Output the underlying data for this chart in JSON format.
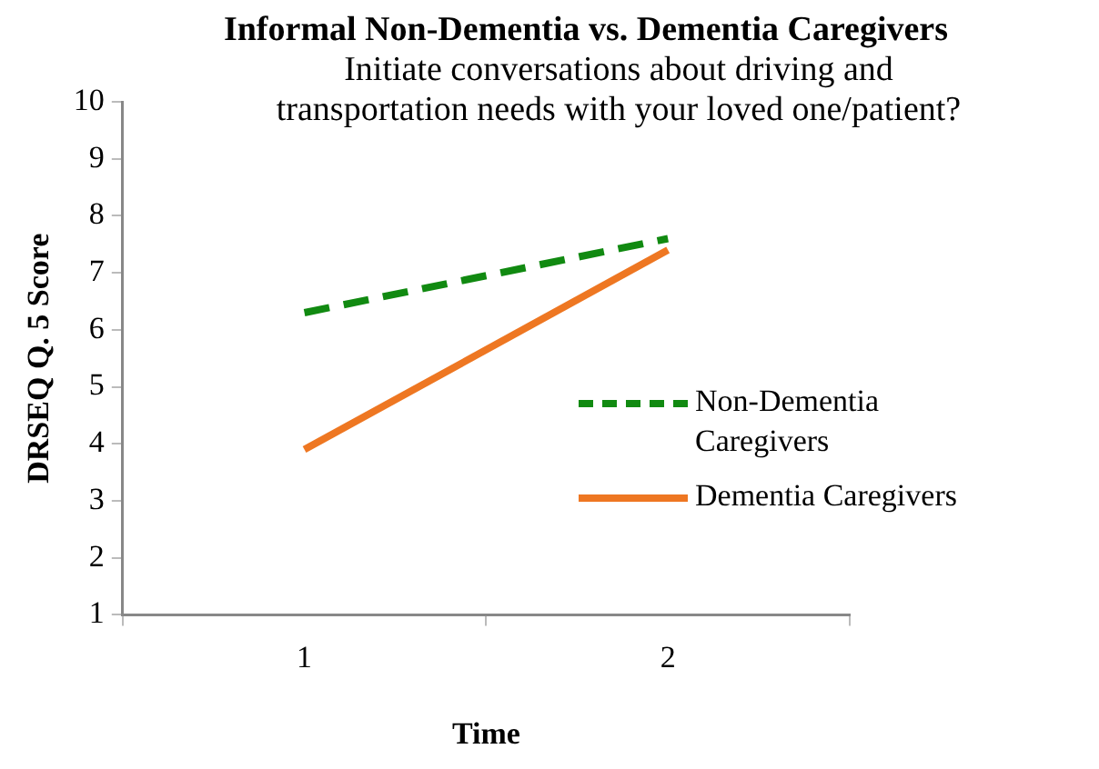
{
  "chart_data": {
    "type": "line",
    "title": "Informal Non-Dementia vs. Dementia Caregivers",
    "subtitle": "Initiate conversations about driving and transportation needs with your loved one/patient?",
    "xlabel": "Time",
    "ylabel": "DRSEQ Q. 5 Score",
    "categories": [
      "1",
      "2"
    ],
    "series": [
      {
        "name": "Non-Dementia Caregivers",
        "color": "#118a11",
        "values": [
          6.3,
          7.6
        ],
        "line_style": "dashed"
      },
      {
        "name": "Dementia Caregivers",
        "color": "#ee7722",
        "values": [
          3.9,
          7.4
        ],
        "line_style": "solid"
      }
    ],
    "ylim": [
      1,
      10
    ],
    "yticks": [
      1,
      2,
      3,
      4,
      5,
      6,
      7,
      8,
      9,
      10
    ],
    "grid": false,
    "legend": "right",
    "marker": "none"
  }
}
